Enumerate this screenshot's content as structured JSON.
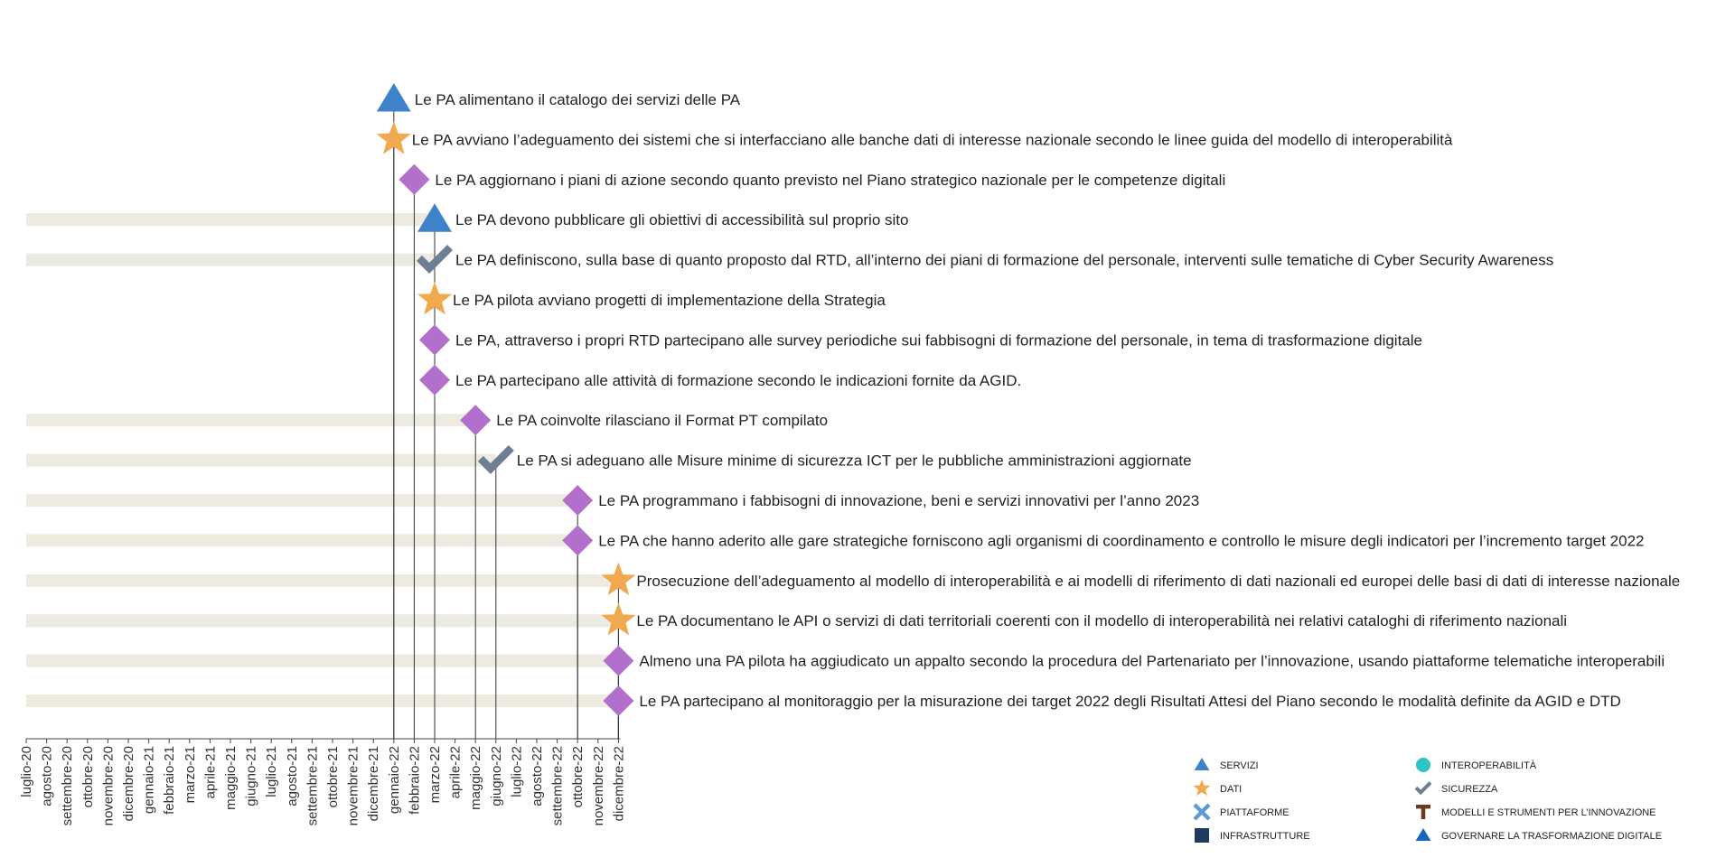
{
  "colors": {
    "servizi": "#3E82C9",
    "dati": "#F0A94E",
    "piattaforme": "#5B9BD5",
    "infrastrutture": "#1F3A60",
    "interoperabilita": "#2EC4C4",
    "sicurezza": "#6E7F94",
    "modelli": "#6B3A1E",
    "governare": "#1566C0",
    "competenze": "#B36FCC",
    "bar": "#EDEADF",
    "axis": "#444444"
  },
  "chart_data": {
    "type": "timeline",
    "months": [
      "luglio-20",
      "agosto-20",
      "settembre-20",
      "ottobre-20",
      "novembre-20",
      "dicembre-20",
      "gennaio-21",
      "febbraio-21",
      "marzo-21",
      "aprile-21",
      "maggio-21",
      "giugno-21",
      "luglio-21",
      "agosto-21",
      "settembre-21",
      "ottobre-21",
      "novembre-21",
      "dicembre-21",
      "gennaio-22",
      "febbraio-22",
      "marzo-22",
      "aprile-22",
      "maggio-22",
      "giugno-22",
      "luglio-22",
      "agosto-22",
      "settembre-22",
      "ottobre-22",
      "novembre-22",
      "dicembre-22"
    ],
    "milestones": [
      {
        "label": "Le PA alimentano il catalogo dei servizi delle PA",
        "date": "gennaio-22",
        "category": "servizi",
        "bar": false
      },
      {
        "label": "Le PA avviano l’adeguamento dei sistemi che si interfacciano alle banche dati di interesse nazionale secondo le linee guida del modello di interoperabilità",
        "date": "gennaio-22",
        "category": "dati",
        "bar": false
      },
      {
        "label": "Le PA aggiornano i piani di azione secondo quanto previsto nel Piano strategico nazionale per le competenze digitali",
        "date": "febbraio-22",
        "category": "competenze",
        "bar": false
      },
      {
        "label": "Le PA devono pubblicare gli obiettivi di accessibilità sul proprio sito",
        "date": "marzo-22",
        "category": "servizi",
        "bar": true
      },
      {
        "label": "Le PA definiscono, sulla base di quanto proposto dal RTD, all’interno dei piani di formazione del personale, interventi sulle tematiche di Cyber Security Awareness",
        "date": "marzo-22",
        "category": "sicurezza",
        "bar": true
      },
      {
        "label": "Le PA pilota avviano progetti di implementazione della Strategia",
        "date": "marzo-22",
        "category": "dati",
        "bar": false
      },
      {
        "label": "Le PA, attraverso i propri  RTD partecipano alle survey periodiche sui fabbisogni di formazione del personale, in tema di trasformazione digitale",
        "date": "marzo-22",
        "category": "competenze",
        "bar": false
      },
      {
        "label": "Le PA partecipano alle attività di formazione secondo le indicazioni fornite da AGID.",
        "date": "marzo-22",
        "category": "competenze",
        "bar": false
      },
      {
        "label": "Le PA coinvolte rilasciano il Format PT compilato",
        "date": "maggio-22",
        "category": "competenze",
        "bar": true
      },
      {
        "label": "Le PA si adeguano alle Misure minime di sicurezza ICT per le pubbliche amministrazioni aggiornate",
        "date": "giugno-22",
        "category": "sicurezza",
        "bar": true
      },
      {
        "label": "Le PA programmano i fabbisogni di innovazione, beni e servizi innovativi per l’anno 2023",
        "date": "ottobre-22",
        "category": "competenze",
        "bar": true
      },
      {
        "label": "Le PA che hanno aderito alle gare strategiche forniscono agli organismi di coordinamento e controllo le misure degli indicatori per l’incremento target 2022",
        "date": "ottobre-22",
        "category": "competenze",
        "bar": true
      },
      {
        "label": "Prosecuzione dell’adeguamento al modello di interoperabilità e ai modelli di riferimento di dati nazionali ed europei delle basi di dati di interesse nazionale",
        "date": "dicembre-22",
        "category": "dati",
        "bar": true
      },
      {
        "label": "Le PA documentano le API o servizi di dati territoriali coerenti con il modello di interoperabilità nei relativi cataloghi di riferimento nazionali",
        "date": "dicembre-22",
        "category": "dati",
        "bar": true
      },
      {
        "label": "Almeno una PA pilota ha aggiudicato un appalto secondo la procedura del Partenariato per l’innovazione, usando piattaforme telematiche interoperabili",
        "date": "dicembre-22",
        "category": "competenze",
        "bar": true
      },
      {
        "label": "Le PA partecipano al monitoraggio per la misurazione dei target 2022 degli Risultati Attesi del Piano secondo le modalità definite da AGID e DTD",
        "date": "dicembre-22",
        "category": "competenze",
        "bar": true
      }
    ],
    "legend": [
      {
        "label": "SERVIZI",
        "icon": "triangle-icon",
        "category": "servizi"
      },
      {
        "label": "DATI",
        "icon": "star-icon",
        "category": "dati"
      },
      {
        "label": "PIATTAFORME",
        "icon": "cross-arrows-icon",
        "category": "piattaforme"
      },
      {
        "label": "INFRASTRUTTURE",
        "icon": "square-icon",
        "category": "infrastrutture"
      },
      {
        "label": "INTEROPERABILITÀ",
        "icon": "circle-icon",
        "category": "interoperabilita"
      },
      {
        "label": "SICUREZZA",
        "icon": "check-icon",
        "category": "sicurezza"
      },
      {
        "label": "MODELLI E STRUMENTI PER L’INNOVAZIONE",
        "icon": "t-bar-icon",
        "category": "modelli"
      },
      {
        "label": "GOVERNARE LA TRASFORMAZIONE DIGITALE",
        "icon": "triangle-icon",
        "category": "governare"
      }
    ]
  }
}
